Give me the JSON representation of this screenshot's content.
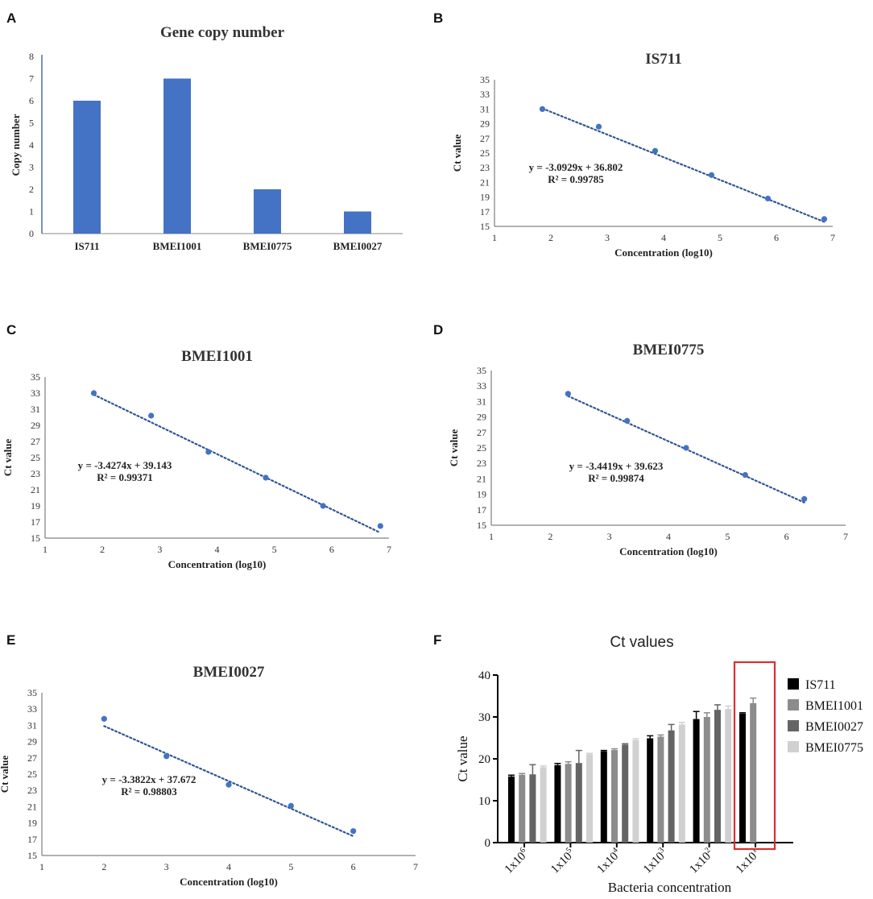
{
  "chart_data": [
    {
      "panel": "A",
      "type": "bar",
      "title": "Gene copy number",
      "xlabel": "",
      "ylabel": "Copy number",
      "categories": [
        "IS711",
        "BMEI1001",
        "BMEI0775",
        "BMEI0027"
      ],
      "values": [
        6,
        7,
        2,
        1
      ],
      "ylim": [
        0,
        8
      ],
      "yticks": [
        0,
        1,
        2,
        3,
        4,
        5,
        6,
        7,
        8
      ],
      "color": "#4472c4"
    },
    {
      "panel": "B",
      "type": "scatter",
      "title": "IS711",
      "xlabel": "Concentration (log10)",
      "ylabel": "Ct value",
      "x": [
        1.85,
        2.85,
        3.85,
        4.85,
        5.85,
        6.85
      ],
      "y": [
        31.0,
        28.6,
        25.3,
        22.0,
        18.8,
        16.0
      ],
      "trendline": {
        "slope": -3.0929,
        "intercept": 36.802,
        "style": "dotted"
      },
      "equation": "y = -3.0929x + 36.802",
      "r2": "R² = 0.99785",
      "xlim": [
        1,
        7
      ],
      "ylim": [
        15,
        35
      ],
      "xticks": [
        1,
        2,
        3,
        4,
        5,
        6,
        7
      ],
      "yticks": [
        15,
        17,
        19,
        21,
        23,
        25,
        27,
        29,
        31,
        33,
        35
      ]
    },
    {
      "panel": "C",
      "type": "scatter",
      "title": "BMEI1001",
      "xlabel": "Concentration (log10)",
      "ylabel": "Ct value",
      "x": [
        1.85,
        2.85,
        3.85,
        4.85,
        5.85,
        6.85
      ],
      "y": [
        33.0,
        30.2,
        25.7,
        22.5,
        19.0,
        16.5
      ],
      "trendline": {
        "slope": -3.4274,
        "intercept": 39.143,
        "style": "dotted"
      },
      "equation": "y = -3.4274x + 39.143",
      "r2": "R² = 0.99371",
      "xlim": [
        1,
        7
      ],
      "ylim": [
        15,
        35
      ],
      "xticks": [
        1,
        2,
        3,
        4,
        5,
        6,
        7
      ],
      "yticks": [
        15,
        17,
        19,
        21,
        23,
        25,
        27,
        29,
        31,
        33,
        35
      ]
    },
    {
      "panel": "D",
      "type": "scatter",
      "title": "BMEI0775",
      "xlabel": "Concentration (log10)",
      "ylabel": "Ct value",
      "x": [
        2.3,
        3.3,
        4.3,
        5.3,
        6.3
      ],
      "y": [
        32.0,
        28.5,
        25.0,
        21.5,
        18.4
      ],
      "trendline": {
        "slope": -3.4419,
        "intercept": 39.623,
        "style": "dotted"
      },
      "equation": "y = -3.4419x + 39.623",
      "r2": "R² = 0.99874",
      "xlim": [
        1,
        7
      ],
      "ylim": [
        15,
        35
      ],
      "xticks": [
        1,
        2,
        3,
        4,
        5,
        6,
        7
      ],
      "yticks": [
        15,
        17,
        19,
        21,
        23,
        25,
        27,
        29,
        31,
        33,
        35
      ]
    },
    {
      "panel": "E",
      "type": "scatter",
      "title": "BMEI0027",
      "xlabel": "Concentration (log10)",
      "ylabel": "Ct value",
      "x": [
        2,
        3,
        4,
        5,
        6
      ],
      "y": [
        31.8,
        27.2,
        23.7,
        21.1,
        18.0
      ],
      "trendline": {
        "slope": -3.3822,
        "intercept": 37.672,
        "style": "dotted"
      },
      "equation": "y = -3.3822x + 37.672",
      "r2": "R² = 0.98803",
      "xlim": [
        1,
        7
      ],
      "ylim": [
        15,
        35
      ],
      "xticks": [
        1,
        2,
        3,
        4,
        5,
        6,
        7
      ],
      "yticks": [
        15,
        17,
        19,
        21,
        23,
        25,
        27,
        29,
        31,
        33,
        35
      ]
    },
    {
      "panel": "F",
      "type": "bar",
      "title": "Ct values",
      "xlabel": "Bacteria concentration",
      "ylabel": "Ct value",
      "categories": [
        "1x10^6",
        "1x10^5",
        "1x10^4",
        "1x10^3",
        "1x10^2",
        "1x10^1"
      ],
      "category_labels": [
        {
          "base": "1x10",
          "exp": "6"
        },
        {
          "base": "1x10",
          "exp": "5"
        },
        {
          "base": "1x10",
          "exp": "4"
        },
        {
          "base": "1x10",
          "exp": "3"
        },
        {
          "base": "1x10",
          "exp": "2"
        },
        {
          "base": "1x10",
          "exp": "1"
        }
      ],
      "series": [
        {
          "name": "IS711",
          "color": "#000000",
          "values": [
            15.8,
            18.5,
            21.8,
            24.9,
            29.5,
            30.8
          ],
          "errors": [
            0.3,
            0.4,
            0.2,
            0.6,
            1.8,
            0.2
          ]
        },
        {
          "name": "BMEI1001",
          "color": "#8c8c8c",
          "values": [
            16.2,
            18.8,
            22.1,
            25.3,
            30.0,
            33.3
          ],
          "errors": [
            0.3,
            0.5,
            0.3,
            0.4,
            1.0,
            1.2
          ]
        },
        {
          "name": "BMEI0027",
          "color": "#646464",
          "values": [
            16.3,
            19.0,
            23.4,
            26.8,
            31.7,
            null
          ],
          "errors": [
            2.3,
            3.0,
            0.2,
            1.4,
            1.2,
            null
          ]
        },
        {
          "name": "BMEI0775",
          "color": "#d0d0d0",
          "values": [
            18.0,
            21.1,
            24.5,
            28.2,
            31.9,
            null
          ],
          "errors": [
            0.3,
            0.2,
            0.3,
            0.5,
            0.7,
            null
          ]
        }
      ],
      "ylim": [
        0,
        40
      ],
      "yticks": [
        0,
        10,
        20,
        30,
        40
      ],
      "highlight_category": "1x10^1",
      "highlight_color": "#d93030"
    }
  ],
  "panel_labels": [
    "A",
    "B",
    "C",
    "D",
    "E",
    "F"
  ]
}
